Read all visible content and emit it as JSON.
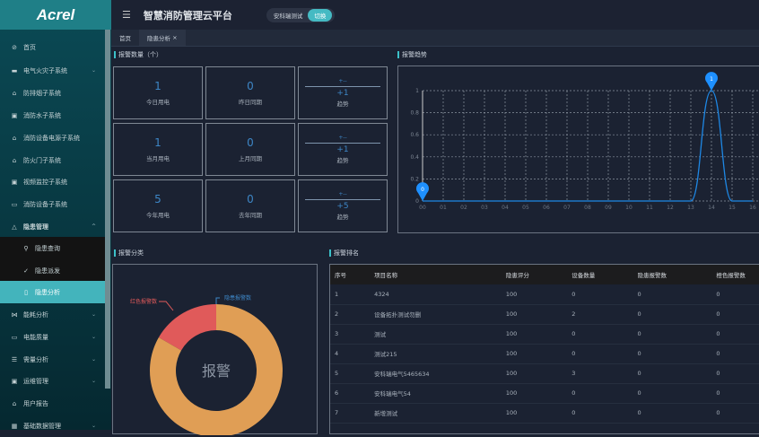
{
  "logo": "Acrel",
  "header": {
    "title": "智慧消防管理云平台",
    "project": "安科瑞测试",
    "switch_label": "切换"
  },
  "tabs": [
    {
      "label": "首页"
    },
    {
      "label": "隐患分析",
      "close": "×"
    }
  ],
  "sidebar": {
    "items": [
      {
        "label": "首页",
        "icon": "home-icon"
      },
      {
        "label": "电气火灾子系统",
        "icon": "chart-icon",
        "chevron": "⌄"
      },
      {
        "label": "防排烟子系统",
        "icon": "lock-icon"
      },
      {
        "label": "消防水子系统",
        "icon": "play-icon"
      },
      {
        "label": "消防设备电源子系统",
        "icon": "lock-icon"
      },
      {
        "label": "防火门子系统",
        "icon": "lock-icon"
      },
      {
        "label": "视频监控子系统",
        "icon": "play-icon"
      },
      {
        "label": "消防设备子系统",
        "icon": "camera-icon"
      },
      {
        "label": "隐患管理",
        "icon": "warning-icon",
        "chevron": "^"
      },
      {
        "label": "隐患查询",
        "icon": "search-icon"
      },
      {
        "label": "隐患派发",
        "icon": "check-icon"
      },
      {
        "label": "隐患分析",
        "icon": "document-icon"
      },
      {
        "label": "能耗分析",
        "icon": "energy-icon",
        "chevron": "⌄"
      },
      {
        "label": "电能质量",
        "icon": "calendar-icon",
        "chevron": "⌄"
      },
      {
        "label": "需量分析",
        "icon": "list-icon",
        "chevron": "⌄"
      },
      {
        "label": "运维管理",
        "icon": "card-icon",
        "chevron": "⌄"
      },
      {
        "label": "用户报告",
        "icon": "lock-icon"
      },
      {
        "label": "基础数据管理",
        "icon": "grid-icon",
        "chevron": "⌄"
      }
    ]
  },
  "alarm_count": {
    "title": "报警数量（个）",
    "rows": [
      {
        "current": "1",
        "current_label": "今日用电",
        "previous": "0",
        "previous_label": "昨日同期",
        "pm": "+--",
        "trend": "+1",
        "trend_label": "趋势"
      },
      {
        "current": "1",
        "current_label": "当月用电",
        "previous": "0",
        "previous_label": "上月同期",
        "pm": "+--",
        "trend": "+1",
        "trend_label": "趋势"
      },
      {
        "current": "5",
        "current_label": "今年用电",
        "previous": "0",
        "previous_label": "去年同期",
        "pm": "+--",
        "trend": "+5",
        "trend_label": "趋势"
      }
    ]
  },
  "alarm_class": {
    "title": "报警分类",
    "center": "报警"
  },
  "alarm_rank": {
    "title": "报警排名",
    "columns": [
      "序号",
      "项目名称",
      "隐患评分",
      "设备数量",
      "隐患报警数",
      "橙色报警数"
    ],
    "rows": [
      [
        "1",
        "4324",
        "100",
        "0",
        "0",
        "0"
      ],
      [
        "2",
        "设备拓扑测试勿删",
        "100",
        "2",
        "0",
        "0"
      ],
      [
        "3",
        "测试",
        "100",
        "0",
        "0",
        "0"
      ],
      [
        "4",
        "测试215",
        "100",
        "0",
        "0",
        "0"
      ],
      [
        "5",
        "安科瑞电气5465634",
        "100",
        "3",
        "0",
        "0"
      ],
      [
        "6",
        "安科瑞电气54",
        "100",
        "0",
        "0",
        "0"
      ],
      [
        "7",
        "新增测试",
        "100",
        "0",
        "0",
        "0"
      ]
    ]
  },
  "chart_data": [
    {
      "type": "line",
      "title": "报警趋势",
      "x": [
        "00",
        "01",
        "02",
        "03",
        "04",
        "05",
        "06",
        "07",
        "08",
        "09",
        "10",
        "11",
        "12",
        "13",
        "14",
        "15",
        "16"
      ],
      "series": [
        {
          "values": [
            0,
            0,
            0,
            0,
            0,
            0,
            0,
            0,
            0,
            0,
            0,
            0,
            0,
            0,
            1,
            0,
            0
          ],
          "color": "#1e88e5"
        }
      ],
      "ylim": [
        0,
        1
      ],
      "yticks": [
        "0",
        "0.2",
        "0.4",
        "0.6",
        "0.8",
        "1"
      ],
      "grid": true,
      "markers": [
        {
          "x": "00",
          "label": "0"
        },
        {
          "x": "14",
          "label": "1"
        }
      ]
    },
    {
      "type": "pie",
      "title": "报警分类",
      "center_label": "报警",
      "slices": [
        {
          "name": "隐患报警数",
          "value": 0,
          "color": "#3d86c6"
        },
        {
          "name": "红色报警数",
          "value": 1,
          "color": "#e05a5a"
        },
        {
          "value": 5,
          "color": "#e09e55"
        }
      ]
    }
  ]
}
